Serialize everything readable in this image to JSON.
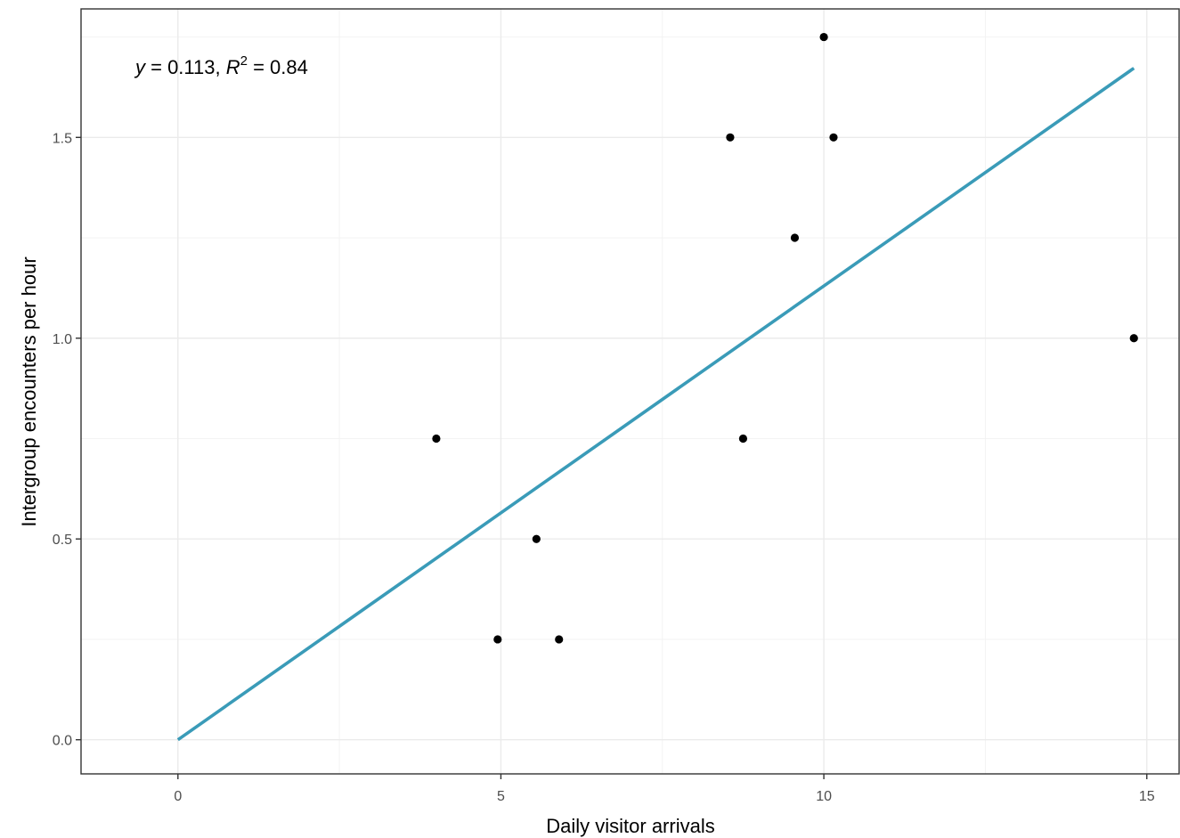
{
  "chart_data": {
    "type": "scatter",
    "xlabel": "Daily visitor arrivals",
    "ylabel": "Intergroup encounters per hour",
    "xlim": [
      -1.5,
      15.5
    ],
    "ylim": [
      -0.085,
      1.82
    ],
    "x_ticks": [
      0,
      5,
      10,
      15
    ],
    "y_ticks": [
      0.0,
      0.5,
      1.0,
      1.5
    ],
    "x_tick_labels": [
      "0",
      "5",
      "10",
      "15"
    ],
    "y_tick_labels": [
      "0.0",
      "0.5",
      "1.0",
      "1.5"
    ],
    "grid": true,
    "points": [
      {
        "x": 4.0,
        "y": 0.75
      },
      {
        "x": 4.95,
        "y": 0.25
      },
      {
        "x": 5.55,
        "y": 0.5
      },
      {
        "x": 5.9,
        "y": 0.25
      },
      {
        "x": 8.55,
        "y": 1.5
      },
      {
        "x": 8.75,
        "y": 0.75
      },
      {
        "x": 9.55,
        "y": 1.25
      },
      {
        "x": 10.0,
        "y": 1.75
      },
      {
        "x": 10.15,
        "y": 1.5
      },
      {
        "x": 14.8,
        "y": 1.0
      }
    ],
    "fit_line": {
      "slope": 0.113,
      "intercept": 0,
      "x_range": [
        0,
        14.8
      ],
      "color": "#3a9bb8"
    },
    "annotation": {
      "y_var": "y",
      "eq_text": " = 0.113, ",
      "r_var": "R",
      "r_sup": "2",
      "r_text": " = 0.84"
    },
    "point_color": "#000000"
  }
}
